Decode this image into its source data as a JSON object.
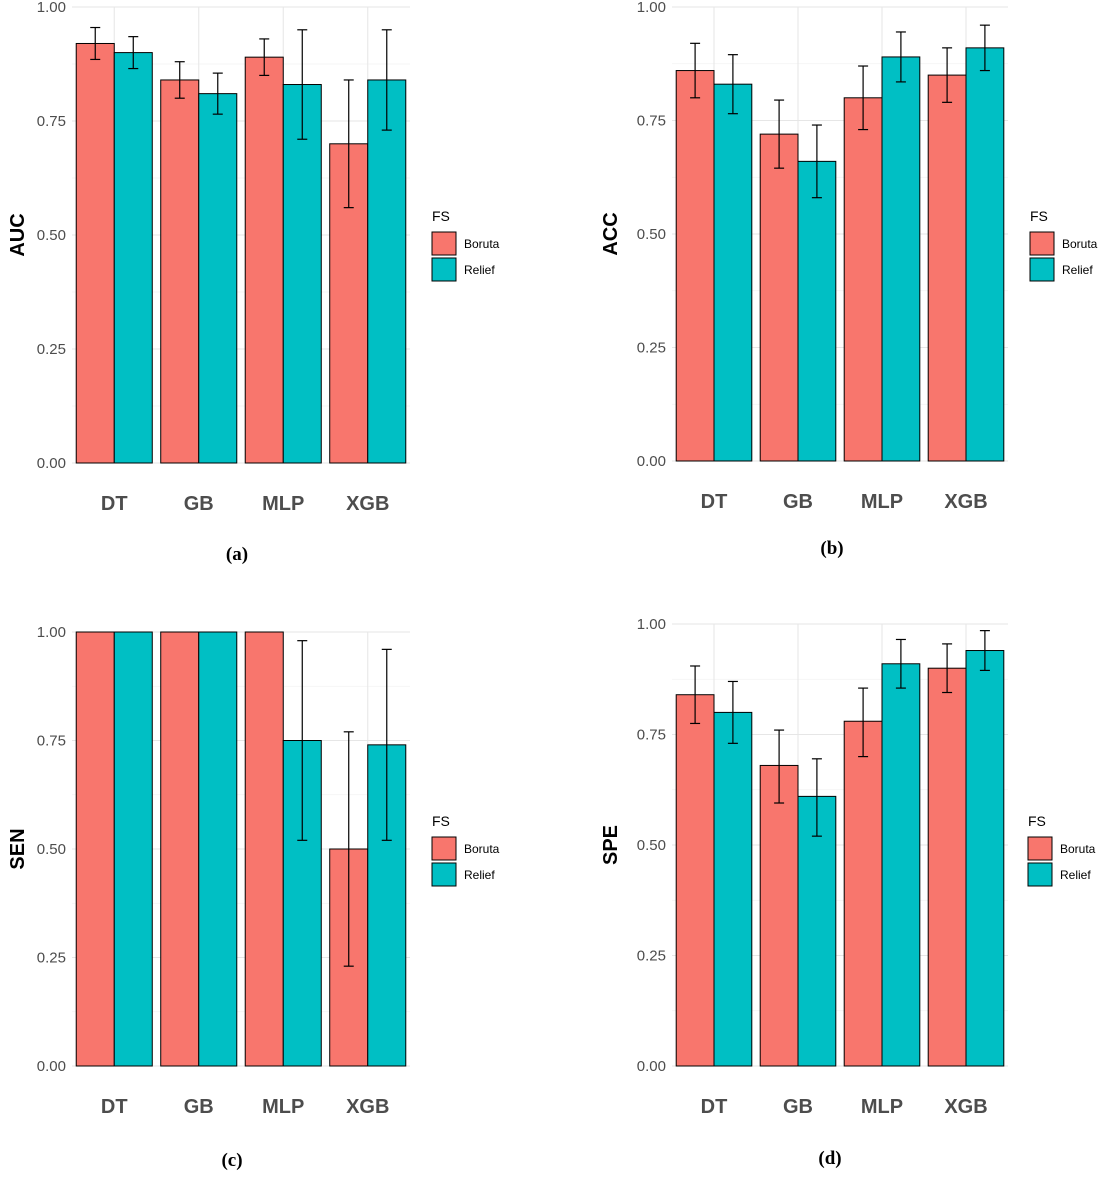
{
  "colors": {
    "boruta": "#F8766D",
    "relief": "#00BFC4"
  },
  "chart_data": [
    {
      "type": "bar",
      "caption": "(a)",
      "ylabel": "AUC",
      "xlabel": "",
      "ylim": [
        0,
        1
      ],
      "yticks": [
        "0.00",
        "0.25",
        "0.50",
        "0.75",
        "1.00"
      ],
      "categories": [
        "DT",
        "GB",
        "MLP",
        "XGB"
      ],
      "legend": {
        "title": "FS",
        "position": "right"
      },
      "series": [
        {
          "name": "Boruta",
          "values": [
            0.92,
            0.84,
            0.89,
            0.7
          ],
          "err_low": [
            0.885,
            0.8,
            0.85,
            0.56
          ],
          "err_high": [
            0.955,
            0.88,
            0.93,
            0.84
          ]
        },
        {
          "name": "Relief",
          "values": [
            0.9,
            0.81,
            0.83,
            0.84
          ],
          "err_low": [
            0.865,
            0.765,
            0.71,
            0.73
          ],
          "err_high": [
            0.935,
            0.855,
            0.95,
            0.95
          ]
        }
      ]
    },
    {
      "type": "bar",
      "caption": "(b)",
      "ylabel": "ACC",
      "xlabel": "",
      "ylim": [
        0,
        1
      ],
      "yticks": [
        "0.00",
        "0.25",
        "0.50",
        "0.75",
        "1.00"
      ],
      "categories": [
        "DT",
        "GB",
        "MLP",
        "XGB"
      ],
      "legend": {
        "title": "FS",
        "position": "right"
      },
      "series": [
        {
          "name": "Boruta",
          "values": [
            0.86,
            0.72,
            0.8,
            0.85
          ],
          "err_low": [
            0.8,
            0.645,
            0.73,
            0.79
          ],
          "err_high": [
            0.92,
            0.795,
            0.87,
            0.91
          ]
        },
        {
          "name": "Relief",
          "values": [
            0.83,
            0.66,
            0.89,
            0.91
          ],
          "err_low": [
            0.765,
            0.58,
            0.835,
            0.86
          ],
          "err_high": [
            0.895,
            0.74,
            0.945,
            0.96
          ]
        }
      ]
    },
    {
      "type": "bar",
      "caption": "(c)",
      "ylabel": "SEN",
      "xlabel": "",
      "ylim": [
        0,
        1
      ],
      "yticks": [
        "0.00",
        "0.25",
        "0.50",
        "0.75",
        "1.00"
      ],
      "categories": [
        "DT",
        "GB",
        "MLP",
        "XGB"
      ],
      "legend": {
        "title": "FS",
        "position": "right"
      },
      "series": [
        {
          "name": "Boruta",
          "values": [
            1.0,
            1.0,
            1.0,
            0.5
          ],
          "err_low": [
            null,
            null,
            null,
            0.23
          ],
          "err_high": [
            null,
            null,
            null,
            0.77
          ]
        },
        {
          "name": "Relief",
          "values": [
            1.0,
            1.0,
            0.75,
            0.74
          ],
          "err_low": [
            null,
            null,
            0.52,
            0.52
          ],
          "err_high": [
            null,
            null,
            0.98,
            0.96
          ]
        }
      ]
    },
    {
      "type": "bar",
      "caption": "(d)",
      "ylabel": "SPE",
      "xlabel": "",
      "ylim": [
        0,
        1
      ],
      "yticks": [
        "0.00",
        "0.25",
        "0.50",
        "0.75",
        "1.00"
      ],
      "categories": [
        "DT",
        "GB",
        "MLP",
        "XGB"
      ],
      "legend": {
        "title": "FS",
        "position": "right"
      },
      "series": [
        {
          "name": "Boruta",
          "values": [
            0.84,
            0.68,
            0.78,
            0.9
          ],
          "err_low": [
            0.775,
            0.595,
            0.7,
            0.845
          ],
          "err_high": [
            0.905,
            0.76,
            0.855,
            0.955
          ]
        },
        {
          "name": "Relief",
          "values": [
            0.8,
            0.61,
            0.91,
            0.94
          ],
          "err_low": [
            0.73,
            0.52,
            0.855,
            0.895
          ],
          "err_high": [
            0.87,
            0.695,
            0.965,
            0.985
          ]
        }
      ]
    }
  ]
}
